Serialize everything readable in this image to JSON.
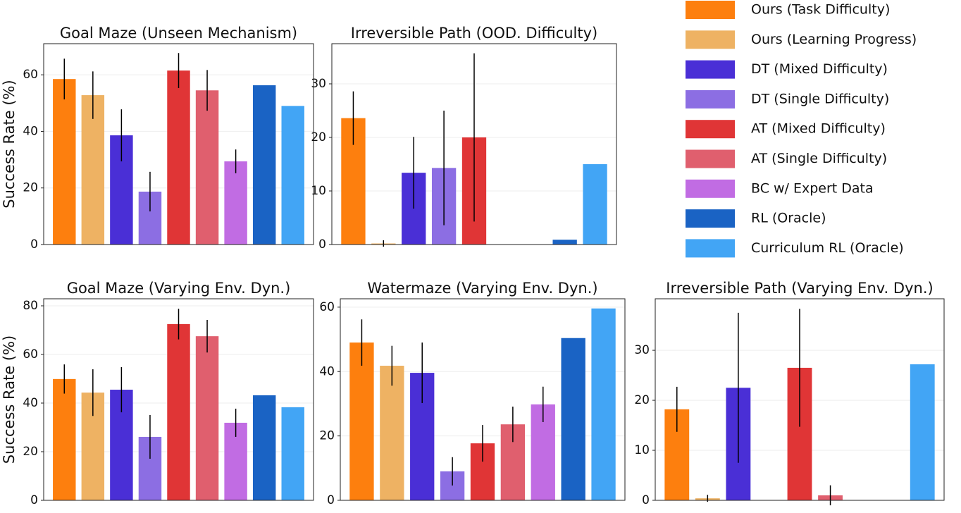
{
  "chart_data": [
    {
      "type": "bar",
      "title": "Goal Maze (Unseen Mechanism)",
      "ylabel": "Success Rate (%)",
      "values": [
        58.5,
        52.8,
        38.6,
        18.7,
        61.5,
        54.5,
        29.4,
        56.3,
        49.0
      ],
      "errors": [
        7.2,
        8.4,
        9.2,
        7.0,
        6.2,
        7.2,
        4.2,
        0,
        0
      ],
      "ylim": [
        0,
        71
      ],
      "yticks": [
        0,
        20,
        40,
        60
      ],
      "grid": true
    },
    {
      "type": "bar",
      "title": "Irreversible Path (OOD. Difficulty)",
      "values": [
        23.6,
        0.2,
        13.4,
        14.3,
        20.0,
        0,
        0,
        0.9,
        15.0
      ],
      "errors": [
        5.0,
        0.6,
        6.7,
        10.7,
        15.7,
        0,
        0,
        0,
        0
      ],
      "ylim": [
        0,
        37.5
      ],
      "yticks": [
        0,
        10,
        20,
        30
      ],
      "grid": true
    },
    {
      "type": "bar",
      "title": "Goal Maze (Varying Env. Dyn.)",
      "ylabel": "Success Rate (%)",
      "values": [
        49.9,
        44.3,
        45.5,
        26.1,
        72.5,
        67.5,
        31.9,
        43.2,
        38.3
      ],
      "errors": [
        6.0,
        9.6,
        9.3,
        9.0,
        6.3,
        6.7,
        5.8,
        0,
        0
      ],
      "ylim": [
        0,
        82.9
      ],
      "yticks": [
        0,
        20,
        40,
        60,
        80
      ],
      "grid": true
    },
    {
      "type": "bar",
      "title": "Watermaze (Varying Env. Dyn.)",
      "values": [
        49.0,
        41.8,
        39.6,
        9.0,
        17.7,
        23.6,
        29.8,
        50.4,
        59.6
      ],
      "errors": [
        7.2,
        6.2,
        9.4,
        4.4,
        5.7,
        5.5,
        5.5,
        0,
        0
      ],
      "ylim": [
        0,
        62.6
      ],
      "yticks": [
        0,
        20,
        40,
        60
      ],
      "grid": true
    },
    {
      "type": "bar",
      "title": "Irreversible Path (Varying Env. Dyn.)",
      "values": [
        18.2,
        0.4,
        22.5,
        0,
        26.5,
        1.0,
        0,
        0,
        27.2
      ],
      "errors": [
        4.5,
        0.7,
        15.0,
        0,
        11.8,
        2.0,
        0,
        0,
        0
      ],
      "ylim": [
        0,
        40.3
      ],
      "yticks": [
        0,
        10,
        20,
        30
      ],
      "grid": true
    }
  ],
  "legend": {
    "names": [
      "Ours (Task Difficulty)",
      "Ours (Learning Progress)",
      "DT (Mixed Difficulty)",
      "DT (Single Difficulty)",
      "AT (Mixed Difficulty)",
      "AT (Single Difficulty)",
      "BC w/ Expert Data",
      "RL (Oracle)",
      "Curriculum RL (Oracle)"
    ],
    "colors": [
      "#fd7f0e",
      "#eeb263",
      "#4a2fd6",
      "#8c6ee3",
      "#e03536",
      "#e05f6e",
      "#c16ce3",
      "#1a63c4",
      "#42a5f5"
    ]
  }
}
